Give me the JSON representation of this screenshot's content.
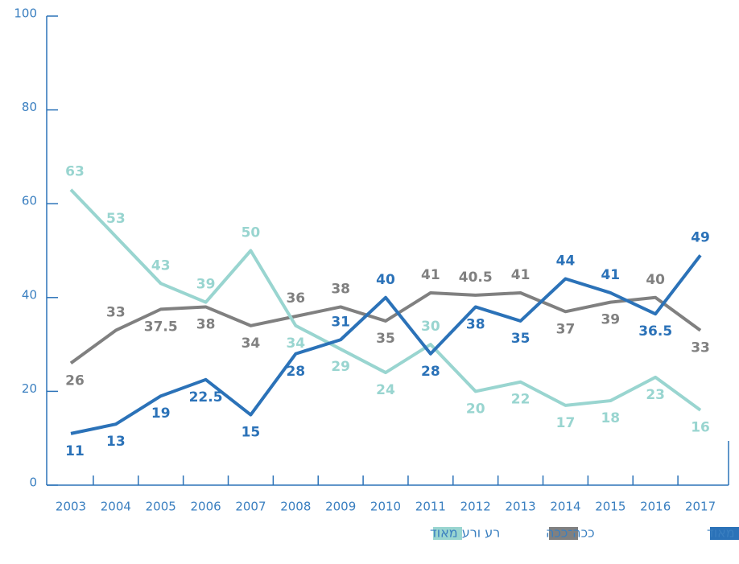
{
  "chart_data": {
    "type": "line",
    "x": [
      "2003",
      "2004",
      "2005",
      "2006",
      "2007",
      "2008",
      "2009",
      "2010",
      "2011",
      "2012",
      "2013",
      "2014",
      "2015",
      "2016",
      "2017"
    ],
    "series": [
      {
        "name": "טוב וטוב מאוד",
        "color": "#2b72b8",
        "values": [
          11,
          13,
          19,
          22.5,
          15,
          28,
          31,
          40,
          28,
          38,
          35,
          44,
          41,
          36.5,
          49
        ]
      },
      {
        "name": "ככה־ככה",
        "color": "#808080",
        "values": [
          26,
          33,
          37.5,
          38,
          34,
          36,
          38,
          35,
          41,
          40.5,
          41,
          37,
          39,
          40,
          33
        ]
      },
      {
        "name": "רע ורע מאוד",
        "color": "#99d5d0",
        "values": [
          63,
          53,
          43,
          39,
          50,
          34,
          29,
          24,
          30,
          20,
          22,
          17,
          18,
          23,
          16
        ]
      }
    ],
    "ylim": [
      0,
      100
    ],
    "yticks": [
      0,
      20,
      40,
      60,
      80,
      100
    ],
    "grid": false,
    "legend": "bottom"
  }
}
